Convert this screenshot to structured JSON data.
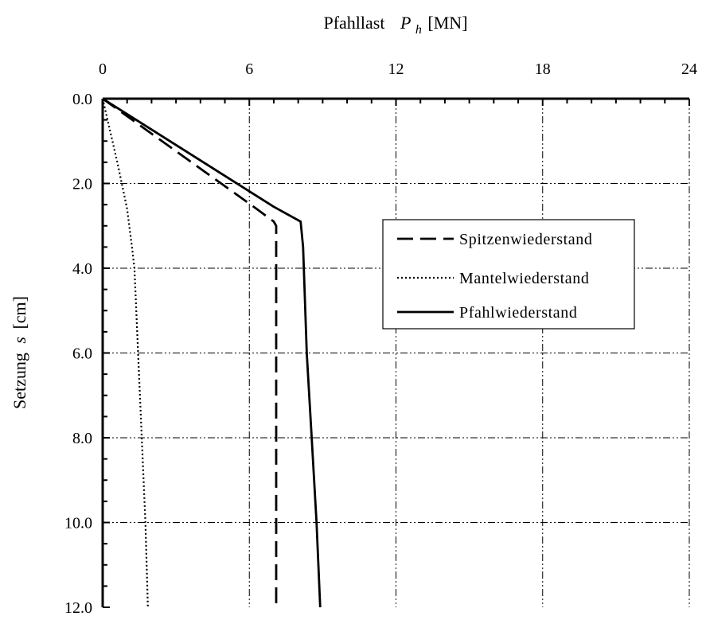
{
  "chart_data": {
    "type": "line",
    "xlabel_main": "Pfahllast",
    "xlabel_symbol": "P",
    "xlabel_subscript": "h",
    "xlabel_unit": "[MN]",
    "ylabel_main": "Setzung",
    "ylabel_symbol": "s",
    "ylabel_unit": "[cm]",
    "xlim": [
      0,
      24
    ],
    "ylim": [
      0,
      12
    ],
    "y_inverted": true,
    "x_axis_position": "top",
    "xticks": [
      0,
      6,
      12,
      18,
      24
    ],
    "xtick_labels": [
      "0",
      "6",
      "12",
      "18",
      "24"
    ],
    "yticks": [
      0,
      2,
      4,
      6,
      8,
      10,
      12
    ],
    "ytick_labels": [
      "0.0",
      "2.0",
      "4.0",
      "6.0",
      "8.0",
      "10.0",
      "12.0"
    ],
    "grid": true,
    "legend_position": "right-center",
    "series": [
      {
        "name": "Spitzenwiederstand",
        "style": "dashed",
        "points": [
          [
            0,
            0
          ],
          [
            6.3,
            2.6
          ],
          [
            7.0,
            2.9
          ],
          [
            7.1,
            3.0
          ],
          [
            7.1,
            12.0
          ]
        ]
      },
      {
        "name": "Mantelwiederstand",
        "style": "dotted",
        "points": [
          [
            0,
            0
          ],
          [
            0.6,
            1.5
          ],
          [
            1.0,
            2.6
          ],
          [
            1.2,
            3.5
          ],
          [
            1.3,
            4.0
          ],
          [
            1.45,
            6.0
          ],
          [
            1.6,
            8.0
          ],
          [
            1.75,
            10.0
          ],
          [
            1.85,
            12.0
          ]
        ]
      },
      {
        "name": "Pfahlwiederstand",
        "style": "solid",
        "points": [
          [
            0,
            0
          ],
          [
            7.0,
            2.55
          ],
          [
            8.1,
            2.9
          ],
          [
            8.2,
            3.5
          ],
          [
            8.35,
            6.0
          ],
          [
            8.55,
            8.0
          ],
          [
            8.75,
            10.0
          ],
          [
            8.9,
            12.0
          ]
        ]
      }
    ]
  }
}
